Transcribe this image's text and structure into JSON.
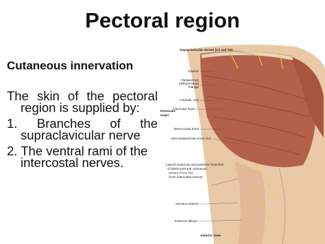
{
  "title": "Pectoral region",
  "heading": "Cutaneous innervation",
  "body": {
    "lines": [
      "The skin of the pectoral",
      "region is supplied by:",
      "1. Branches of the",
      "supraclavicular nerve",
      "2. The ventral rami of the",
      "intercostal nerves."
    ]
  },
  "figure": {
    "labels": [
      "Supraclavicular nerves (C3 and C4)",
      "Clavicle",
      "Clavipectoral",
      "(deltopectoral)",
      "triangle",
      "Cephalic vein",
      "Pectoralis",
      "major",
      "Clavicular head",
      "Sternocostal head",
      "Intercostobrachial nerve (T2)",
      "Lateral mammary and posterior branches",
      "of lateral pectoral cutaneous",
      "nerves (T3 to T6)",
      "(from intercostal nerves)",
      "Serratus anterior",
      "External oblique",
      "Anterior View"
    ]
  }
}
